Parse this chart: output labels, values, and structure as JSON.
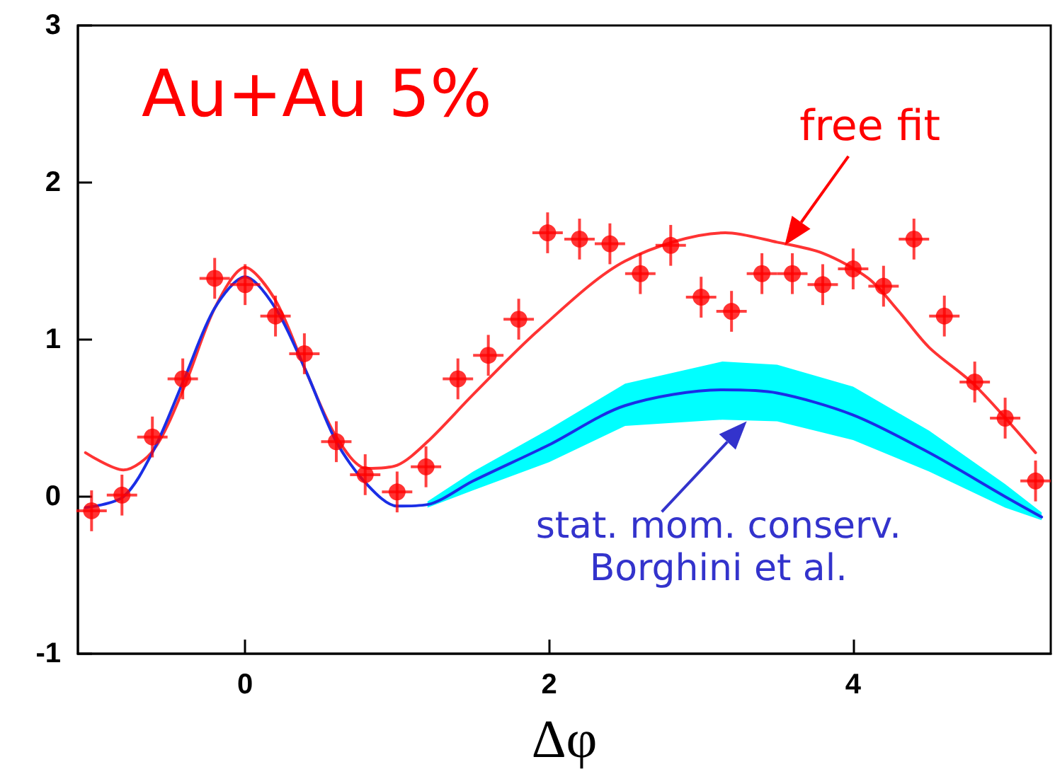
{
  "chart_data": {
    "type": "scatter",
    "xlabel": "Δφ",
    "xlim": [
      -1.1,
      5.3
    ],
    "xticks": [
      0,
      2,
      4
    ],
    "ylim": [
      -1,
      3
    ],
    "yticks": [
      -1,
      0,
      1,
      2,
      3
    ],
    "grid": false,
    "series": [
      {
        "marker": "circle",
        "color": "#ff0000",
        "x": [
          -1.01,
          -0.81,
          -0.61,
          -0.41,
          -0.2,
          0,
          0.2,
          0.39,
          0.6,
          0.79,
          1.0,
          1.19,
          1.4,
          1.6,
          1.8,
          1.99,
          2.2,
          2.4,
          2.6,
          2.8,
          3.0,
          3.2,
          3.4,
          3.6,
          3.8,
          4.0,
          4.2,
          4.4,
          4.6,
          4.8,
          5.0,
          5.2
        ],
        "values": [
          -0.09,
          0.01,
          0.38,
          0.75,
          1.39,
          1.35,
          1.15,
          0.91,
          0.35,
          0.14,
          0.03,
          0.19,
          0.75,
          0.9,
          1.13,
          1.68,
          1.64,
          1.61,
          1.42,
          1.6,
          1.27,
          1.18,
          1.42,
          1.42,
          1.35,
          1.45,
          1.34,
          1.64,
          1.15,
          0.73,
          0.5,
          0.1
        ],
        "errors": [
          0.13,
          0.13,
          0.13,
          0.13,
          0.13,
          0.13,
          0.13,
          0.13,
          0.13,
          0.13,
          0.13,
          0.13,
          0.13,
          0.13,
          0.13,
          0.13,
          0.13,
          0.13,
          0.13,
          0.13,
          0.13,
          0.13,
          0.13,
          0.13,
          0.13,
          0.13,
          0.13,
          0.13,
          0.13,
          0.13,
          0.13,
          0.13
        ],
        "xerrors": [
          0.1,
          0.1,
          0.1,
          0.1,
          0.1,
          0.1,
          0.1,
          0.1,
          0.1,
          0.1,
          0.1,
          0.1,
          0.1,
          0.1,
          0.1,
          0.1,
          0.1,
          0.1,
          0.1,
          0.1,
          0.1,
          0.1,
          0.1,
          0.1,
          0.1,
          0.1,
          0.1,
          0.1,
          0.1,
          0.1,
          0.1,
          0.1
        ]
      },
      {
        "type": "line",
        "marker": "none",
        "color": "#ff3333",
        "x": [
          -1.05,
          -0.8,
          -0.6,
          -0.4,
          -0.2,
          0,
          0.2,
          0.4,
          0.6,
          0.8,
          1.0,
          1.2,
          1.5,
          1.93,
          2.5,
          3.16,
          3.5,
          3.8,
          4.1,
          4.3,
          4.5,
          4.8,
          5.2
        ],
        "values": [
          0.28,
          0.17,
          0.3,
          0.7,
          1.2,
          1.46,
          1.25,
          0.8,
          0.38,
          0.18,
          0.2,
          0.35,
          0.65,
          1.06,
          1.5,
          1.68,
          1.62,
          1.55,
          1.39,
          1.18,
          0.95,
          0.71,
          0.28
        ]
      },
      {
        "type": "line",
        "marker": "none",
        "color": "#1a2ee6",
        "x": [
          -1.05,
          -0.8,
          -0.6,
          -0.4,
          -0.2,
          0,
          0.2,
          0.4,
          0.6,
          0.8,
          1.0,
          1.2,
          1.5,
          2.0,
          2.5,
          3.14,
          3.5,
          4.0,
          4.5,
          5.0,
          5.24
        ],
        "values": [
          -0.07,
          0.0,
          0.3,
          0.75,
          1.2,
          1.4,
          1.2,
          0.8,
          0.35,
          0.08,
          -0.06,
          -0.05,
          0.1,
          0.33,
          0.58,
          0.68,
          0.66,
          0.52,
          0.28,
          0.0,
          -0.13
        ],
        "lower": [
          null,
          null,
          null,
          null,
          null,
          null,
          null,
          null,
          null,
          null,
          null,
          -0.07,
          0.04,
          0.22,
          0.45,
          0.49,
          0.48,
          0.36,
          0.16,
          -0.07,
          -0.15
        ],
        "upper": [
          null,
          null,
          null,
          null,
          null,
          null,
          null,
          null,
          null,
          null,
          null,
          -0.03,
          0.16,
          0.43,
          0.72,
          0.86,
          0.84,
          0.7,
          0.42,
          0.08,
          -0.1
        ]
      }
    ],
    "annotations": [
      "Au+Au 5%",
      {
        "text": "free fit",
        "x": 3.55,
        "y": 1.6
      },
      {
        "text": "stat. mom. conserv.\nBorghini et al.",
        "x": 3.3,
        "y": 0.48
      }
    ]
  }
}
